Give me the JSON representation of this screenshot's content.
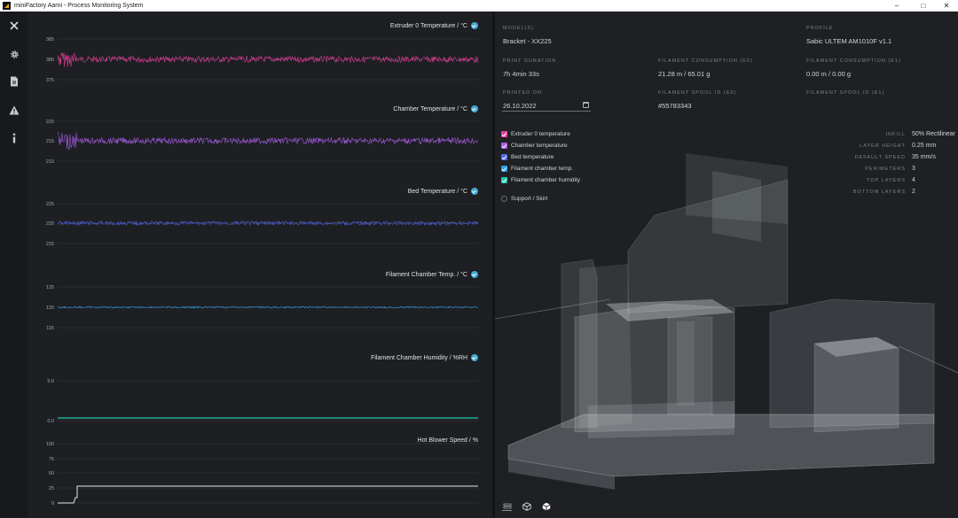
{
  "window": {
    "title": "miniFactory Aarni - Process Monitoring System",
    "controls": {
      "minimize": "–",
      "maximize": "□",
      "close": "✕"
    }
  },
  "sidebar": {
    "items": [
      {
        "icon": "close-icon"
      },
      {
        "icon": "gear-icon"
      },
      {
        "icon": "document-icon"
      },
      {
        "icon": "warning-icon"
      },
      {
        "icon": "info-icon"
      }
    ]
  },
  "charts": [
    {
      "title": "Extruder 0 Temperature / °C",
      "color": "#e8409a",
      "ticks": [
        "385",
        "380",
        "375"
      ],
      "checked": true
    },
    {
      "title": "Chamber Temperature / °C",
      "color": "#a95ce8",
      "ticks": [
        "220",
        "215",
        "210"
      ],
      "checked": true
    },
    {
      "title": "Bed Temperature / °C",
      "color": "#5566e6",
      "ticks": [
        "225",
        "220",
        "215"
      ],
      "checked": true
    },
    {
      "title": "Filament Chamber Temp. / °C",
      "color": "#2f9fe3",
      "ticks": [
        "125",
        "120",
        "115"
      ],
      "checked": true
    },
    {
      "title": "Filament Chamber Humidity / %RH",
      "color": "#24c6b0",
      "ticks": [
        "5.0",
        "0.0"
      ],
      "checked": true
    },
    {
      "title": "Hot Blower Speed / %",
      "color": "#e4e6e8",
      "ticks": [
        "100",
        "75",
        "50",
        "25",
        "0"
      ],
      "checked": false
    }
  ],
  "info": {
    "model_label": "MODEL(S)",
    "model_value": "Bracket - XX225",
    "profile_label": "PROFILE",
    "profile_value": "Sabic ULTEM AM1010F v1.1",
    "duration_label": "PRINT DURATION",
    "duration_value": "7h 4min 33s",
    "consumption_e0_label": "FILAMENT CONSUMPTION (E0)",
    "consumption_e0_value": "21.28 m / 65.01 g",
    "consumption_e1_label": "FILAMENT CONSUMPTION (E1)",
    "consumption_e1_value": "0.00 m / 0.00 g",
    "printed_on_label": "PRINTED ON",
    "printed_on_value": "26.10.2022",
    "spool_e0_label": "FILAMENT SPOOL ID (E0)",
    "spool_e0_value": "#55783343",
    "spool_e1_label": "FILAMENT SPOOL ID (E1)"
  },
  "legend": [
    {
      "label": "Extruder 0 temperature",
      "color": "#e8409a",
      "checked": true
    },
    {
      "label": "Chamber temperature",
      "color": "#a95ce8",
      "checked": true
    },
    {
      "label": "Bed temperature",
      "color": "#5566e6",
      "checked": true
    },
    {
      "label": "Filament chamber temp.",
      "color": "#2f9fe3",
      "checked": true
    },
    {
      "label": "Filament chamber humidity",
      "color": "#24c6b0",
      "checked": true
    },
    {
      "label": "Support / Skirt",
      "color": "#1e2024",
      "checked": false
    }
  ],
  "params": [
    {
      "label": "INFILL",
      "value": "50% Rectilinear"
    },
    {
      "label": "LAYER HEIGHT",
      "value": "0.25 mm"
    },
    {
      "label": "DEFAULT SPEED",
      "value": "35 mm/s"
    },
    {
      "label": "PERIMETERS",
      "value": "3"
    },
    {
      "label": "TOP LAYERS",
      "value": "4"
    },
    {
      "label": "BOTTOM LAYERS",
      "value": "2"
    }
  ],
  "viewer": {
    "buttons": [
      {
        "icon": "layers-view-icon",
        "active": true
      },
      {
        "icon": "cube-outline-icon",
        "active": false
      },
      {
        "icon": "cube-solid-icon",
        "active": false
      }
    ]
  }
}
